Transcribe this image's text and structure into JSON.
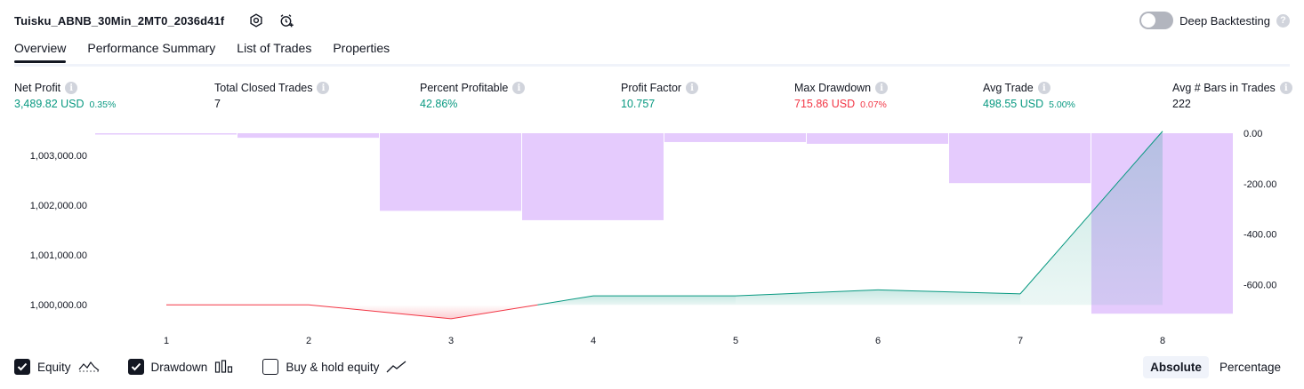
{
  "header": {
    "strategy_name": "Tuisku_ABNB_30Min_2MT0_2036d41f",
    "deep_backtesting_label": "Deep Backtesting",
    "deep_backtesting_enabled": false
  },
  "tabs": [
    {
      "label": "Overview",
      "active": true
    },
    {
      "label": "Performance Summary",
      "active": false
    },
    {
      "label": "List of Trades",
      "active": false
    },
    {
      "label": "Properties",
      "active": false
    }
  ],
  "metrics": [
    {
      "label": "Net Profit",
      "value": "3,489.82 USD",
      "pct": "0.35%",
      "color": "green"
    },
    {
      "label": "Total Closed Trades",
      "value": "7",
      "pct": "",
      "color": "plain"
    },
    {
      "label": "Percent Profitable",
      "value": "42.86%",
      "pct": "",
      "color": "green"
    },
    {
      "label": "Profit Factor",
      "value": "10.757",
      "pct": "",
      "color": "green"
    },
    {
      "label": "Max Drawdown",
      "value": "715.86 USD",
      "pct": "0.07%",
      "color": "red"
    },
    {
      "label": "Avg Trade",
      "value": "498.55 USD",
      "pct": "5.00%",
      "color": "green"
    },
    {
      "label": "Avg # Bars in Trades",
      "value": "222",
      "pct": "",
      "color": "plain"
    }
  ],
  "chart_data": {
    "type": "line",
    "x": [
      1,
      2,
      3,
      4,
      5,
      6,
      7,
      8
    ],
    "x_tick_labels": [
      "1",
      "2",
      "3",
      "4",
      "5",
      "6",
      "7",
      "8"
    ],
    "left_axis": {
      "ticks": [
        "1,000,000.00",
        "1,001,000.00",
        "1,002,000.00",
        "1,003,000.00"
      ],
      "range": [
        999700,
        1003450
      ]
    },
    "right_axis": {
      "ticks": [
        "0.00",
        "-200.00",
        "-400.00",
        "-600.00"
      ],
      "range": [
        -740,
        0
      ]
    },
    "baseline": 1000000,
    "series": [
      {
        "values": [
          1000000,
          1000000,
          999720,
          1000180,
          1000180,
          1000300,
          1000220,
          1003490
        ],
        "axis": "left",
        "colors": {
          "up": "#089981",
          "down": "#f23645"
        }
      },
      {
        "values": [
          -5,
          -18,
          -308,
          -345,
          -35,
          -42,
          -198,
          -716
        ],
        "axis": "right",
        "color": "#e1c2fd"
      }
    ]
  },
  "legend": [
    {
      "label": "Equity",
      "checked": true,
      "icon": "equity-line-icon"
    },
    {
      "label": "Drawdown",
      "checked": true,
      "icon": "drawdown-bars-icon"
    },
    {
      "label": "Buy & hold equity",
      "checked": false,
      "icon": "buy-hold-line-icon"
    }
  ],
  "view_mode": {
    "options": [
      "Absolute",
      "Percentage"
    ],
    "selected": "Absolute"
  }
}
